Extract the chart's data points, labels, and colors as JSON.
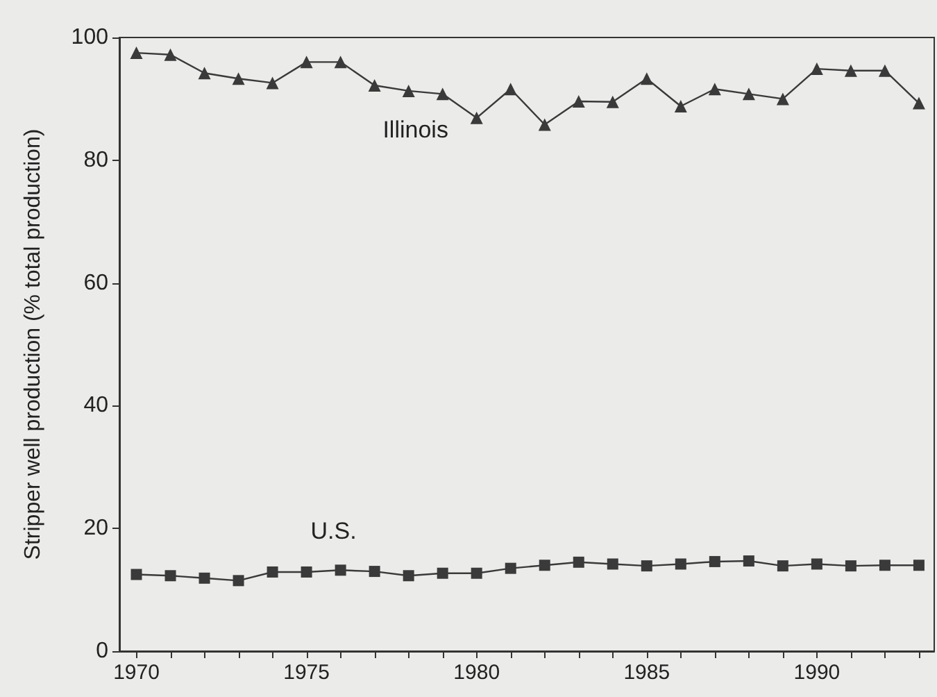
{
  "chart_data": {
    "type": "line",
    "ylabel": "Stripper well production (% total production)",
    "x": [
      1970,
      1971,
      1972,
      1973,
      1974,
      1975,
      1976,
      1977,
      1978,
      1979,
      1980,
      1981,
      1982,
      1983,
      1984,
      1985,
      1986,
      1987,
      1988,
      1989,
      1990,
      1991,
      1992,
      1993
    ],
    "series": [
      {
        "name": "Illinois",
        "color": "#3a3a3a",
        "marker": "triangle",
        "values": [
          97.5,
          97.2,
          94.2,
          93.3,
          92.6,
          96,
          96,
          92.2,
          91.3,
          90.8,
          86.9,
          91.6,
          85.8,
          89.6,
          89.5,
          93.3,
          88.8,
          91.6,
          90.8,
          90.0,
          94.9,
          94.6,
          94.6,
          89.3
        ]
      },
      {
        "name": "U.S.",
        "color": "#3a3a3a",
        "marker": "square",
        "values": [
          12.5,
          12.3,
          11.9,
          11.5,
          12.9,
          12.9,
          13.2,
          13.0,
          12.3,
          12.7,
          12.7,
          13.5,
          14.0,
          14.5,
          14.2,
          13.9,
          14.2,
          14.6,
          14.7,
          13.9,
          14.2,
          13.9,
          14.0,
          14.0
        ]
      }
    ],
    "xlim": [
      1969.5,
      1993.45
    ],
    "xticks": [
      1970,
      {
        "value": 1971,
        "label": null
      },
      {
        "value": 1972,
        "label": null
      },
      {
        "value": 1973,
        "label": null
      },
      {
        "value": 1974,
        "label": null
      },
      1975,
      {
        "value": 1976,
        "label": null
      },
      {
        "value": 1977,
        "label": null
      },
      {
        "value": 1978,
        "label": null
      },
      {
        "value": 1979,
        "label": null
      },
      1980,
      {
        "value": 1981,
        "label": null
      },
      {
        "value": 1982,
        "label": null
      },
      {
        "value": 1983,
        "label": null
      },
      {
        "value": 1984,
        "label": null
      },
      1985,
      {
        "value": 1986,
        "label": null
      },
      {
        "value": 1987,
        "label": null
      },
      {
        "value": 1988,
        "label": null
      },
      {
        "value": 1989,
        "label": null
      },
      1990,
      {
        "value": 1991,
        "label": null
      },
      {
        "value": 1992,
        "label": null
      },
      {
        "value": 1993,
        "label": null
      }
    ],
    "ylim": [
      0,
      100
    ],
    "yticks": [
      0,
      20,
      40,
      60,
      80,
      100
    ],
    "grid": false,
    "line_style": "solid"
  }
}
